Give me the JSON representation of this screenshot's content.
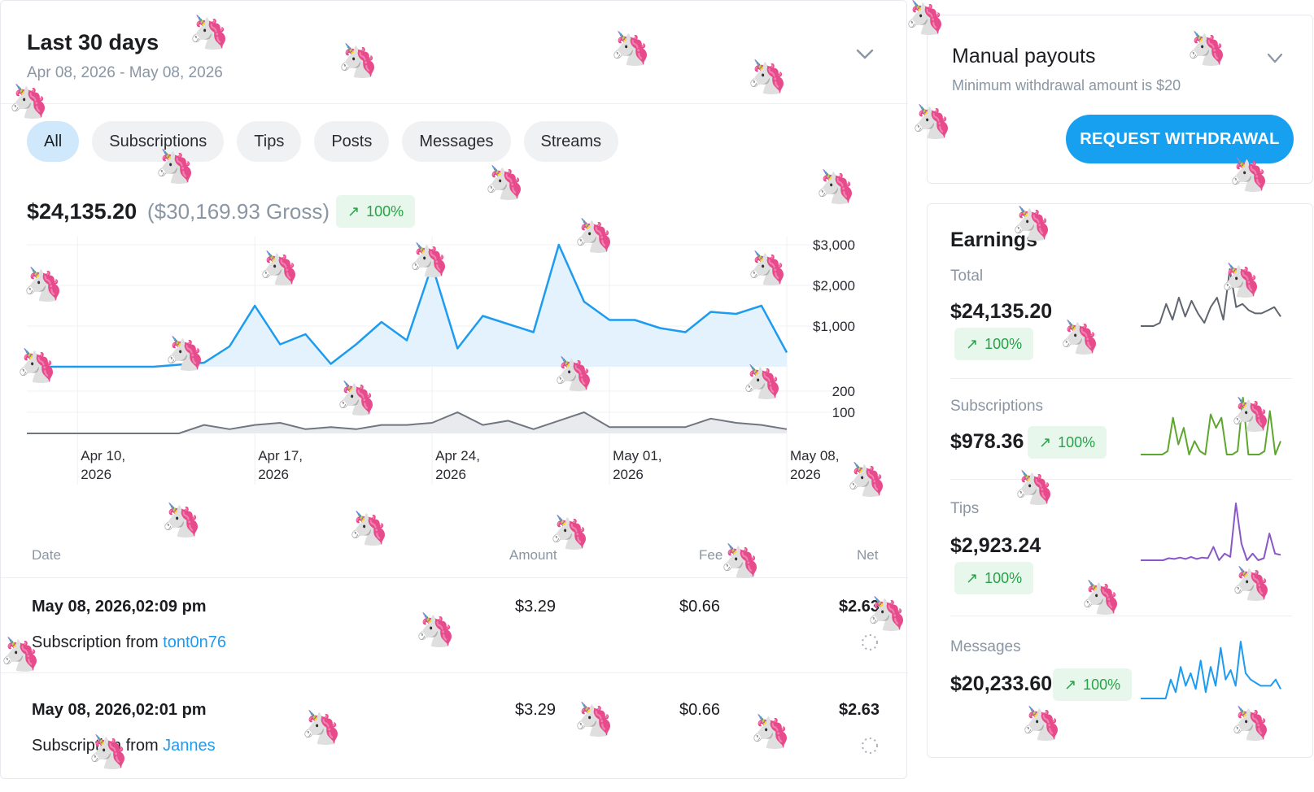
{
  "header": {
    "title": "Last 30 days",
    "date_range": "Apr 08, 2026 - May 08, 2026"
  },
  "filters": [
    {
      "label": "All",
      "active": true
    },
    {
      "label": "Subscriptions",
      "active": false
    },
    {
      "label": "Tips",
      "active": false
    },
    {
      "label": "Posts",
      "active": false
    },
    {
      "label": "Messages",
      "active": false
    },
    {
      "label": "Streams",
      "active": false
    }
  ],
  "summary": {
    "net": "$24,135.20",
    "gross": "($30,169.93 Gross)",
    "change": "100%"
  },
  "chart_data": {
    "type": "area",
    "x_ticks": [
      {
        "line1": "Apr 10,",
        "line2": "2026",
        "day": 2
      },
      {
        "line1": "Apr 17,",
        "line2": "2026",
        "day": 9
      },
      {
        "line1": "Apr 24,",
        "line2": "2026",
        "day": 16
      },
      {
        "line1": "May 01,",
        "line2": "2026",
        "day": 23
      },
      {
        "line1": "May 08,",
        "line2": "2026",
        "day": 30
      }
    ],
    "series": [
      {
        "kind": "earnings",
        "ylim": [
          0,
          3000
        ],
        "y_ticks": [
          "$3,000",
          "$2,000",
          "$1,000"
        ],
        "y_tick_values": [
          3000,
          2000,
          1000
        ],
        "values": [
          0,
          0,
          0,
          0,
          0,
          0,
          50,
          100,
          500,
          1500,
          550,
          800,
          70,
          550,
          1100,
          650,
          2500,
          450,
          1250,
          1050,
          850,
          3000,
          1600,
          1150,
          1150,
          950,
          850,
          1350,
          1300,
          1500,
          350
        ]
      },
      {
        "kind": "count",
        "ylim": [
          0,
          200
        ],
        "y_ticks": [
          "200",
          "100"
        ],
        "y_tick_values": [
          200,
          100
        ],
        "values": [
          0,
          0,
          0,
          0,
          0,
          0,
          0,
          40,
          20,
          40,
          50,
          20,
          30,
          20,
          40,
          40,
          50,
          100,
          40,
          60,
          20,
          60,
          100,
          30,
          30,
          30,
          30,
          70,
          50,
          40,
          20
        ]
      }
    ]
  },
  "table": {
    "headers": {
      "date": "Date",
      "amount": "Amount",
      "fee": "Fee",
      "net": "Net"
    },
    "rows": [
      {
        "date": "May 08, 2026,02:09 pm",
        "amount": "$3.29",
        "fee": "$0.66",
        "net": "$2.63",
        "desc_prefix": "Subscription from ",
        "user": "tont0n76"
      },
      {
        "date": "May 08, 2026,02:01 pm",
        "amount": "$3.29",
        "fee": "$0.66",
        "net": "$2.63",
        "desc_prefix": "Subscription from ",
        "user": "Jannes"
      }
    ]
  },
  "payouts": {
    "title": "Manual payouts",
    "subtitle": "Minimum withdrawal amount is $20",
    "button": "REQUEST WITHDRAWAL"
  },
  "earnings": {
    "title": "Earnings",
    "items": [
      {
        "label": "Total",
        "value": "$24,135.20",
        "change": "100%",
        "color": "#5f6670",
        "spark": [
          0,
          0,
          0,
          5,
          35,
          10,
          45,
          15,
          40,
          20,
          5,
          30,
          45,
          10,
          90,
          30,
          35,
          25,
          20,
          20,
          25,
          30,
          15
        ]
      },
      {
        "label": "Subscriptions",
        "value": "$978.36",
        "change": "100%",
        "color": "#5ea72d",
        "spark": [
          0,
          0,
          0,
          0,
          0,
          5,
          55,
          15,
          40,
          0,
          20,
          5,
          0,
          60,
          40,
          55,
          0,
          0,
          5,
          85,
          0,
          0,
          0,
          5,
          65,
          0,
          20
        ]
      },
      {
        "label": "Tips",
        "value": "$2,923.24",
        "change": "100%",
        "color": "#8a57c8",
        "spark": [
          0,
          0,
          0,
          0,
          0,
          3,
          2,
          4,
          2,
          5,
          2,
          4,
          3,
          20,
          0,
          10,
          5,
          85,
          25,
          0,
          10,
          0,
          3,
          40,
          10,
          8
        ]
      },
      {
        "label": "Messages",
        "value": "$20,233.60",
        "change": "100%",
        "color": "#1d9bf0",
        "spark": [
          0,
          0,
          0,
          0,
          0,
          0,
          30,
          10,
          50,
          20,
          40,
          15,
          60,
          10,
          50,
          20,
          80,
          30,
          45,
          20,
          90,
          40,
          30,
          25,
          20,
          20,
          20,
          30,
          15
        ]
      }
    ]
  },
  "colors": {
    "accent": "#1d9bf0",
    "button": "#16a0ef",
    "positive": "#27a248"
  }
}
